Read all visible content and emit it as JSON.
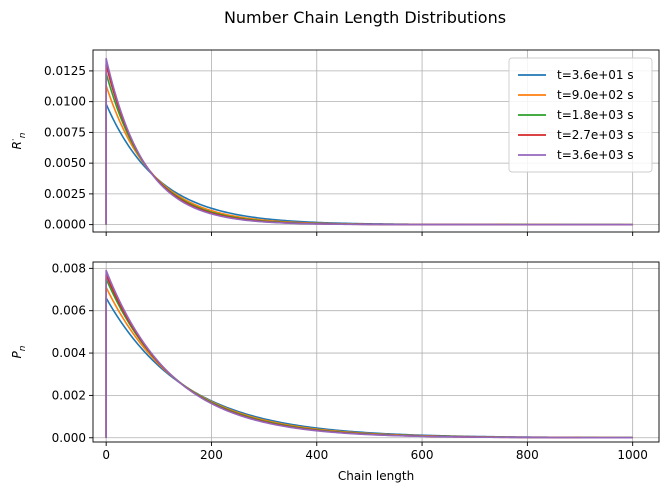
{
  "figure": {
    "title": "Number Chain Length Distributions"
  },
  "chart_data": [
    {
      "type": "line",
      "ylabel": "R",
      "ylabel_sub": "n",
      "ylabel_super": "·",
      "xlabel": "",
      "xlim": [
        -25,
        1050
      ],
      "ylim": [
        -0.0006,
        0.0142
      ],
      "xticks": [
        0,
        200,
        400,
        600,
        800,
        1000
      ],
      "xtick_labels_visible": false,
      "yticks": [
        0.0,
        0.0025,
        0.005,
        0.0075,
        0.01,
        0.0125
      ],
      "ytick_labels": [
        "0.0000",
        "0.0025",
        "0.0050",
        "0.0075",
        "0.0100",
        "0.0125"
      ],
      "grid": true,
      "legend": "top-right",
      "curve": "exponential",
      "series": [
        {
          "name": "t=3.6e+01 s",
          "color": "#1f77b4",
          "peak": 0.0098,
          "decay_length": 100
        },
        {
          "name": "t=9.0e+02 s",
          "color": "#ff7f0e",
          "peak": 0.0113,
          "decay_length": 87
        },
        {
          "name": "t=1.8e+03 s",
          "color": "#2ca02c",
          "peak": 0.0123,
          "decay_length": 80
        },
        {
          "name": "t=2.7e+03 s",
          "color": "#d62728",
          "peak": 0.013,
          "decay_length": 76
        },
        {
          "name": "t=3.6e+03 s",
          "color": "#9467bd",
          "peak": 0.0135,
          "decay_length": 73
        }
      ]
    },
    {
      "type": "line",
      "ylabel": "P",
      "ylabel_sub": "n",
      "xlabel": "Chain length",
      "xlim": [
        -25,
        1050
      ],
      "ylim": [
        -0.0002,
        0.0083
      ],
      "xticks": [
        0,
        200,
        400,
        600,
        800,
        1000
      ],
      "xtick_labels": [
        "0",
        "200",
        "400",
        "600",
        "800",
        "1000"
      ],
      "yticks": [
        0.0,
        0.002,
        0.004,
        0.006,
        0.008
      ],
      "ytick_labels": [
        "0.000",
        "0.002",
        "0.004",
        "0.006",
        "0.008"
      ],
      "grid": true,
      "curve": "exponential",
      "series": [
        {
          "name": "t=3.6e+01 s",
          "color": "#1f77b4",
          "peak": 0.0066,
          "decay_length": 150
        },
        {
          "name": "t=9.0e+02 s",
          "color": "#ff7f0e",
          "peak": 0.0071,
          "decay_length": 140
        },
        {
          "name": "t=1.8e+03 s",
          "color": "#2ca02c",
          "peak": 0.0075,
          "decay_length": 133
        },
        {
          "name": "t=2.7e+03 s",
          "color": "#d62728",
          "peak": 0.0077,
          "decay_length": 129
        },
        {
          "name": "t=3.6e+03 s",
          "color": "#9467bd",
          "peak": 0.0079,
          "decay_length": 126
        }
      ]
    }
  ]
}
